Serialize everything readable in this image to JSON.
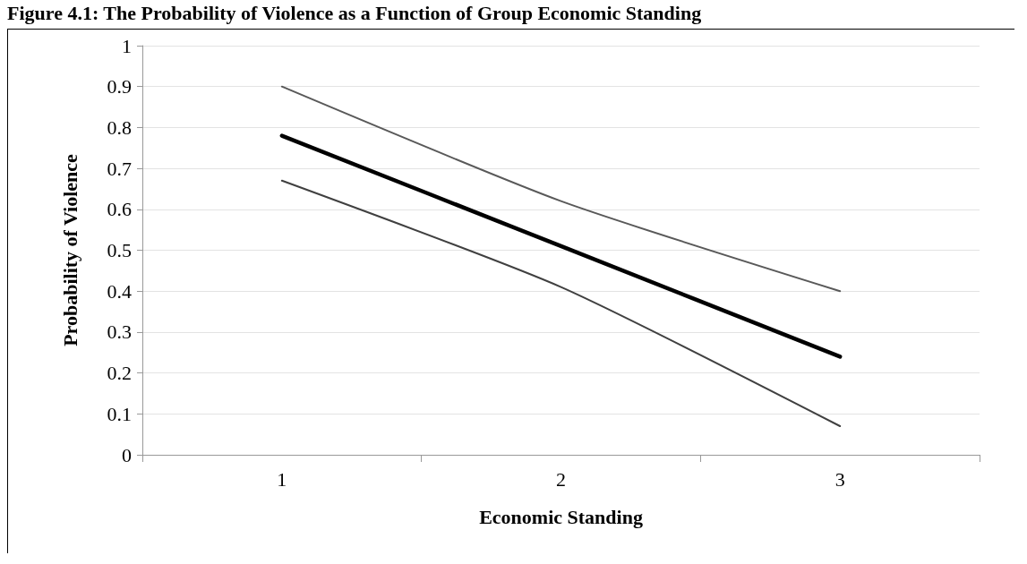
{
  "chart_data": {
    "type": "line",
    "title": "Figure 4.1: The Probability of Violence as a Function of Group Economic Standing",
    "xlabel": "Economic Standing",
    "ylabel": "Probability of Violence",
    "categories": [
      "1",
      "2",
      "3"
    ],
    "series": [
      {
        "color": "#595959",
        "values": [
          0.9,
          0.62,
          0.4
        ]
      },
      {
        "color": "#000000",
        "values": [
          0.78,
          0.51,
          0.24
        ]
      },
      {
        "color": "#404040",
        "values": [
          0.67,
          0.41,
          0.07
        ]
      }
    ],
    "ylim": [
      0,
      1
    ],
    "yticks": [
      0,
      0.1,
      0.2,
      0.3,
      0.4,
      0.5,
      0.6,
      0.7,
      0.8,
      0.9,
      1
    ],
    "grid": "y",
    "marker": "none",
    "line_style": "solid"
  }
}
